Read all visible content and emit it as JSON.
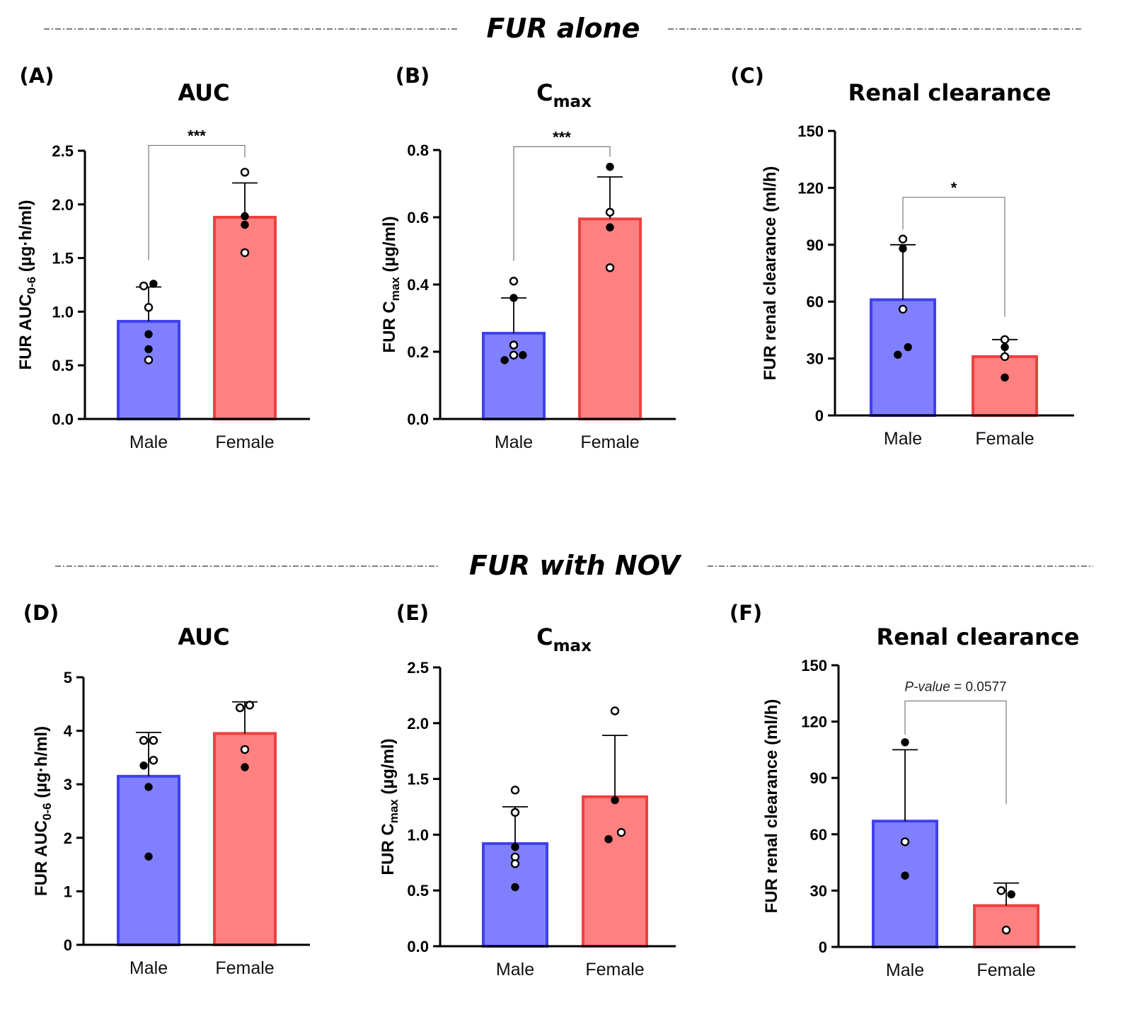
{
  "figure": {
    "sections": [
      {
        "title": "FUR alone"
      },
      {
        "title": "FUR with NOV"
      }
    ],
    "colors": {
      "male_fill": "#8080ff",
      "male_stroke": "#4040ee",
      "female_fill": "#ff8080",
      "female_stroke": "#ee4040"
    }
  },
  "chart_data": [
    {
      "type": "bar",
      "panel": "(A)",
      "title": "AUC",
      "title_sub": "",
      "ylabel": "FUR AUC",
      "ylabel_sub": "0-6",
      "ylabel_tail": " (µg·h/ml)",
      "ylim": [
        0,
        2.5
      ],
      "yticks": [
        "0.0",
        "0.5",
        "1.0",
        "1.5",
        "2.0",
        "2.5"
      ],
      "categories": [
        "Male",
        "Female"
      ],
      "means": [
        0.91,
        1.88
      ],
      "errors": [
        1.23,
        2.2
      ],
      "points": [
        [
          {
            "v": 1.24,
            "open": true,
            "dx": -0.08
          },
          {
            "v": 1.26,
            "open": false,
            "dx": 0.08
          },
          {
            "v": 1.04,
            "open": true,
            "dx": 0
          },
          {
            "v": 0.79,
            "open": false,
            "dx": 0
          },
          {
            "v": 0.65,
            "open": false,
            "dx": 0
          },
          {
            "v": 0.55,
            "open": true,
            "dx": 0
          }
        ],
        [
          {
            "v": 2.3,
            "open": true,
            "dx": 0
          },
          {
            "v": 1.89,
            "open": false,
            "dx": 0
          },
          {
            "v": 1.81,
            "open": false,
            "dx": 0
          },
          {
            "v": 1.55,
            "open": true,
            "dx": 0
          }
        ]
      ],
      "bracket": {
        "label": "***",
        "y": 2.55,
        "left_drop": 1.48,
        "right_drop": 2.44
      }
    },
    {
      "type": "bar",
      "panel": "(B)",
      "title": "C",
      "title_sub": "max",
      "ylabel": "FUR C",
      "ylabel_sub": "max",
      "ylabel_tail": " (µg/ml)",
      "ylim": [
        0,
        0.8
      ],
      "yticks": [
        "0.0",
        "0.2",
        "0.4",
        "0.6",
        "0.8"
      ],
      "categories": [
        "Male",
        "Female"
      ],
      "means": [
        0.255,
        0.595
      ],
      "errors": [
        0.36,
        0.72
      ],
      "points": [
        [
          {
            "v": 0.41,
            "open": true,
            "dx": 0
          },
          {
            "v": 0.36,
            "open": false,
            "dx": 0
          },
          {
            "v": 0.22,
            "open": true,
            "dx": 0
          },
          {
            "v": 0.19,
            "open": true,
            "dx": 0
          },
          {
            "v": 0.19,
            "open": false,
            "dx": 0.15
          },
          {
            "v": 0.175,
            "open": false,
            "dx": -0.15
          }
        ],
        [
          {
            "v": 0.75,
            "open": false,
            "dx": 0
          },
          {
            "v": 0.615,
            "open": true,
            "dx": 0
          },
          {
            "v": 0.57,
            "open": false,
            "dx": 0
          },
          {
            "v": 0.45,
            "open": true,
            "dx": 0
          }
        ]
      ],
      "bracket": {
        "label": "***",
        "y": 0.81,
        "left_drop": 0.47,
        "right_drop": 0.78
      }
    },
    {
      "type": "bar",
      "panel": "(C)",
      "title": "Renal clearance",
      "title_sub": "",
      "ylabel": "FUR renal clearance (ml/h)",
      "ylabel_sub": "",
      "ylabel_tail": "",
      "ylim": [
        0,
        150
      ],
      "yticks": [
        "0",
        "30",
        "60",
        "90",
        "120",
        "150"
      ],
      "categories": [
        "Male",
        "Female"
      ],
      "means": [
        61,
        31
      ],
      "errors": [
        90,
        40
      ],
      "points": [
        [
          {
            "v": 93,
            "open": true,
            "dx": 0
          },
          {
            "v": 88,
            "open": false,
            "dx": 0
          },
          {
            "v": 56,
            "open": true,
            "dx": 0
          },
          {
            "v": 36,
            "open": false,
            "dx": 0.08
          },
          {
            "v": 32,
            "open": false,
            "dx": -0.08
          }
        ],
        [
          {
            "v": 40,
            "open": true,
            "dx": 0
          },
          {
            "v": 36,
            "open": false,
            "dx": 0
          },
          {
            "v": 31,
            "open": true,
            "dx": 0
          },
          {
            "v": 20,
            "open": false,
            "dx": 0
          }
        ]
      ],
      "bracket": {
        "label": "*",
        "y": 115,
        "left_drop": 98,
        "right_drop": 52
      }
    },
    {
      "type": "bar",
      "panel": "(D)",
      "title": "AUC",
      "title_sub": "",
      "ylabel": "FUR AUC",
      "ylabel_sub": "0-6",
      "ylabel_tail": " (µg·h/ml)",
      "ylim": [
        0,
        5
      ],
      "yticks": [
        "0",
        "1",
        "2",
        "3",
        "4",
        "5"
      ],
      "categories": [
        "Male",
        "Female"
      ],
      "means": [
        3.15,
        3.95
      ],
      "errors": [
        3.97,
        4.54
      ],
      "points": [
        [
          {
            "v": 3.82,
            "open": true,
            "dx": -0.08
          },
          {
            "v": 3.82,
            "open": true,
            "dx": 0.08
          },
          {
            "v": 3.45,
            "open": true,
            "dx": 0.08
          },
          {
            "v": 3.35,
            "open": false,
            "dx": -0.08
          },
          {
            "v": 2.95,
            "open": false,
            "dx": 0
          },
          {
            "v": 1.65,
            "open": false,
            "dx": 0
          }
        ],
        [
          {
            "v": 4.48,
            "open": true,
            "dx": 0.08
          },
          {
            "v": 4.43,
            "open": true,
            "dx": -0.08
          },
          {
            "v": 3.65,
            "open": true,
            "dx": 0
          },
          {
            "v": 3.32,
            "open": false,
            "dx": 0
          }
        ]
      ],
      "bracket": null
    },
    {
      "type": "bar",
      "panel": "(E)",
      "title": "C",
      "title_sub": "max",
      "ylabel": "FUR C",
      "ylabel_sub": "max",
      "ylabel_tail": " (µg/ml)",
      "ylim": [
        0,
        2.5
      ],
      "yticks": [
        "0.0",
        "0.5",
        "1.0",
        "1.5",
        "2.0",
        "2.5"
      ],
      "categories": [
        "Male",
        "Female"
      ],
      "means": [
        0.92,
        1.34
      ],
      "errors": [
        1.25,
        1.89
      ],
      "points": [
        [
          {
            "v": 1.4,
            "open": true,
            "dx": 0
          },
          {
            "v": 1.2,
            "open": true,
            "dx": 0
          },
          {
            "v": 0.89,
            "open": false,
            "dx": 0
          },
          {
            "v": 0.8,
            "open": true,
            "dx": 0
          },
          {
            "v": 0.74,
            "open": true,
            "dx": 0
          },
          {
            "v": 0.53,
            "open": false,
            "dx": 0
          }
        ],
        [
          {
            "v": 2.11,
            "open": true,
            "dx": 0
          },
          {
            "v": 1.31,
            "open": false,
            "dx": 0
          },
          {
            "v": 1.02,
            "open": true,
            "dx": 0.1
          },
          {
            "v": 0.96,
            "open": false,
            "dx": -0.1
          }
        ]
      ],
      "bracket": null
    },
    {
      "type": "bar",
      "panel": "(F)",
      "title": "Renal clearance",
      "title_sub": "",
      "ylabel": "FUR renal clearance (ml/h)",
      "ylabel_sub": "",
      "ylabel_tail": "",
      "ylim": [
        0,
        150
      ],
      "yticks": [
        "0",
        "30",
        "60",
        "90",
        "120",
        "150"
      ],
      "categories": [
        "Male",
        "Female"
      ],
      "means": [
        67,
        22
      ],
      "errors": [
        105,
        34
      ],
      "points": [
        [
          {
            "v": 109,
            "open": false,
            "dx": 0
          },
          {
            "v": 56,
            "open": true,
            "dx": 0
          },
          {
            "v": 38,
            "open": false,
            "dx": 0
          }
        ],
        [
          {
            "v": 30,
            "open": true,
            "dx": -0.08
          },
          {
            "v": 28,
            "open": false,
            "dx": 0.08
          },
          {
            "v": 9,
            "open": true,
            "dx": 0
          }
        ]
      ],
      "bracket": {
        "label": "",
        "label_italic": "P-value",
        "label_rest": " = 0.0577",
        "y": 131,
        "left_drop": 113,
        "right_drop": 76
      }
    }
  ]
}
